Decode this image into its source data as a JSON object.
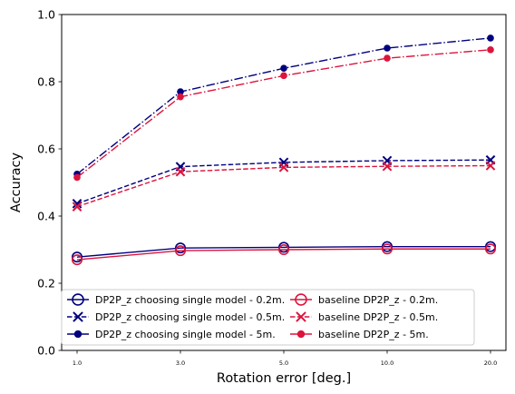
{
  "chart_data": {
    "type": "line",
    "xlabel": "Rotation error [deg.]",
    "ylabel": "Accuracy",
    "categories": [
      "1.0",
      "3.0",
      "5.0",
      "10.0",
      "20.0"
    ],
    "ylim": [
      0.0,
      1.0
    ],
    "yticks": [
      "0.0",
      "0.2",
      "0.4",
      "0.6",
      "0.8",
      "1.0"
    ],
    "grid": false,
    "legend_position": "lower center",
    "series": [
      {
        "name": "DP2P_z choosing single model - 0.2m.",
        "values": [
          0.278,
          0.305,
          0.307,
          0.309,
          0.309
        ],
        "color": "#00007f",
        "line": "solid",
        "marker": "circle-open"
      },
      {
        "name": "DP2P_z choosing single model - 0.5m.",
        "values": [
          0.437,
          0.547,
          0.56,
          0.565,
          0.567
        ],
        "color": "#00007f",
        "line": "dashed",
        "marker": "x"
      },
      {
        "name": "DP2P_z choosing single model - 5m.",
        "values": [
          0.525,
          0.77,
          0.84,
          0.9,
          0.93
        ],
        "color": "#00007f",
        "line": "dashdot",
        "marker": "dot"
      },
      {
        "name": "baseline DP2P_z - 0.2m.",
        "values": [
          0.27,
          0.297,
          0.3,
          0.302,
          0.302
        ],
        "color": "#dc143c",
        "line": "solid",
        "marker": "circle-open"
      },
      {
        "name": "baseline DP2P_z - 0.5m.",
        "values": [
          0.428,
          0.532,
          0.545,
          0.548,
          0.55
        ],
        "color": "#dc143c",
        "line": "dashed",
        "marker": "x"
      },
      {
        "name": "baseline DP2P_z - 5m.",
        "values": [
          0.515,
          0.755,
          0.818,
          0.87,
          0.895
        ],
        "color": "#dc143c",
        "line": "dashdot",
        "marker": "dot"
      }
    ]
  }
}
